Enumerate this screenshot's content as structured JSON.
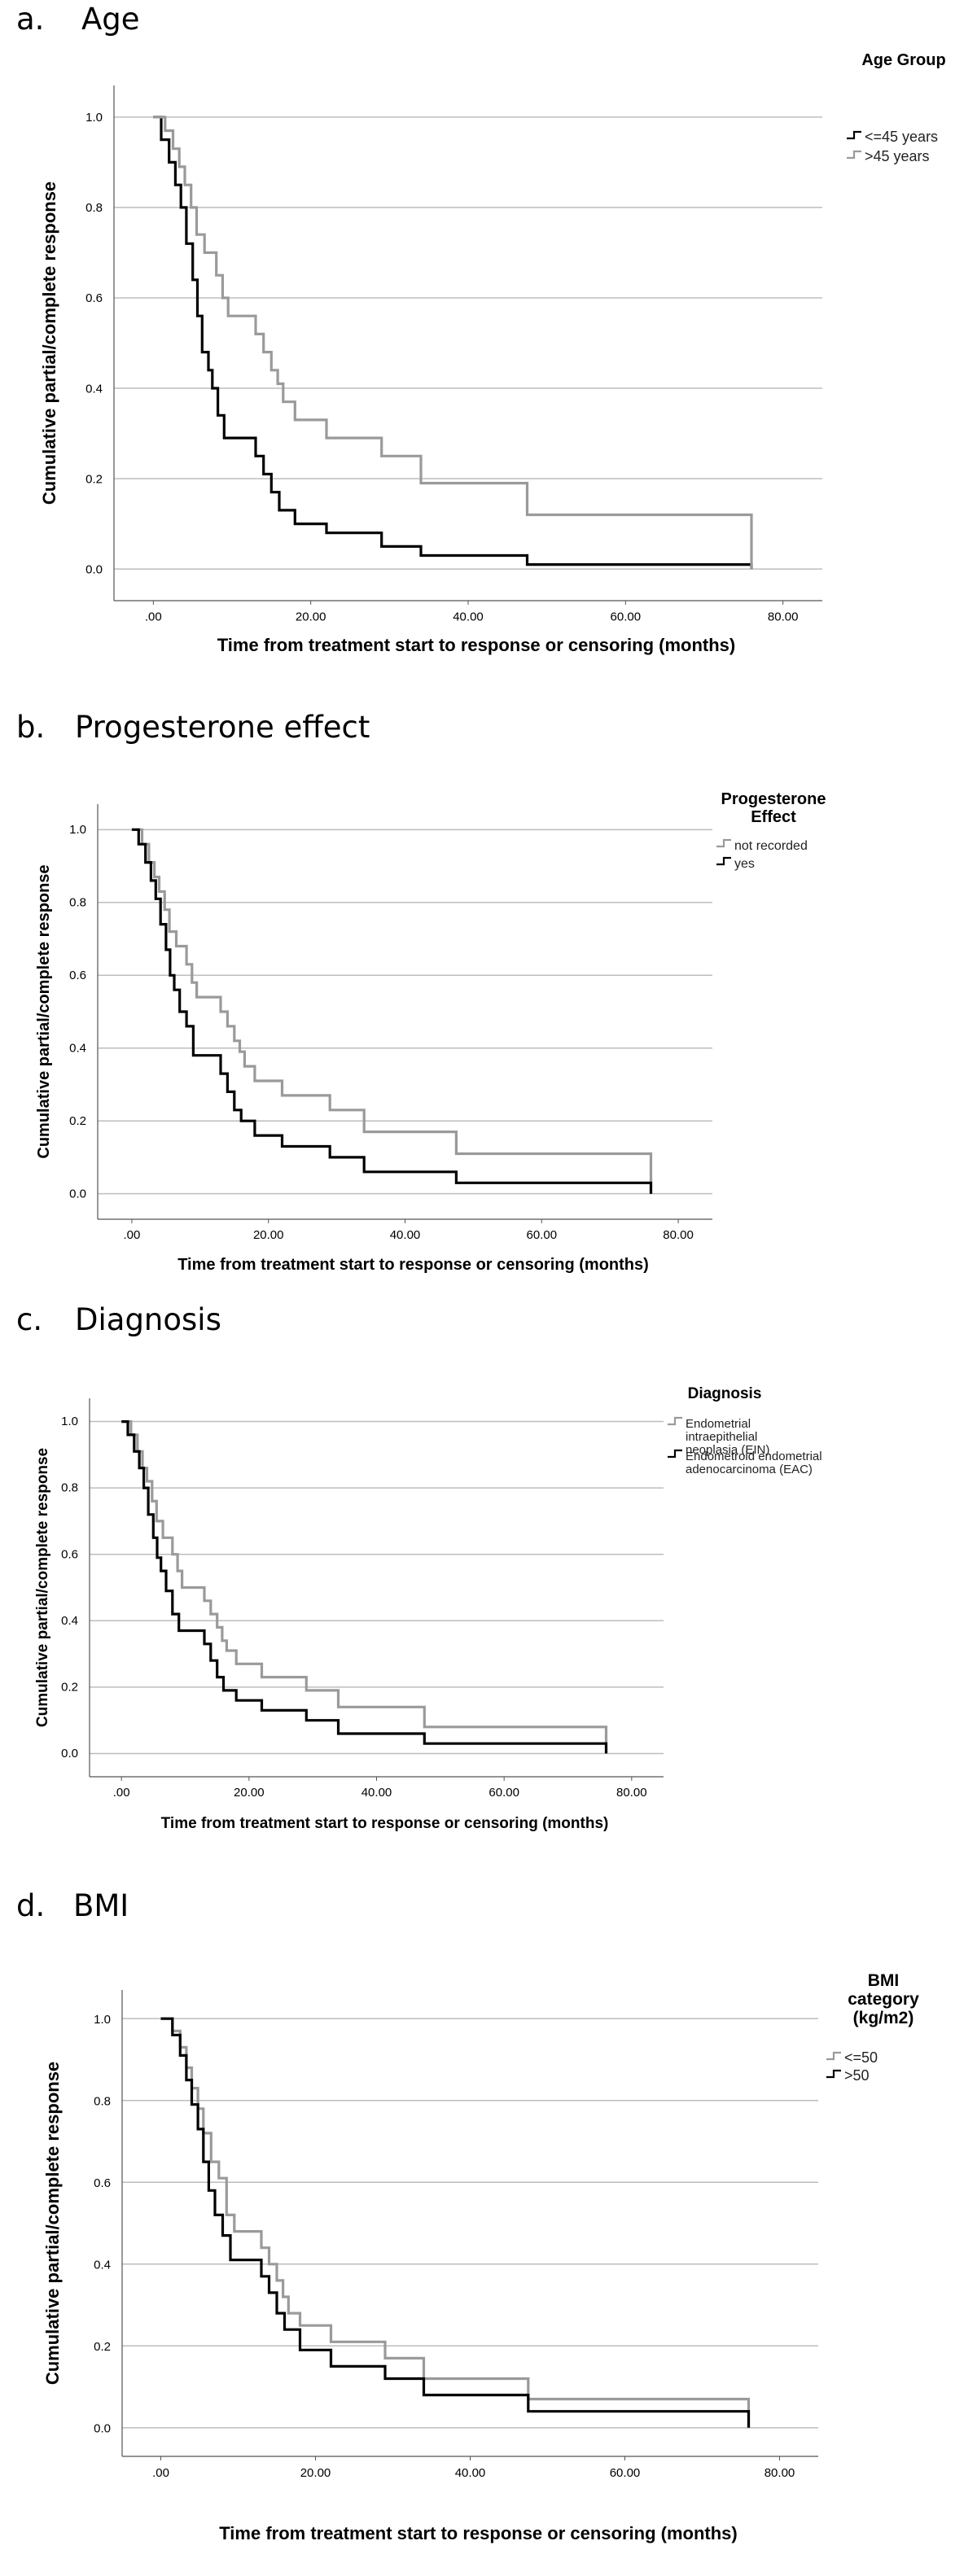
{
  "chart_data": [
    {
      "type": "line",
      "panel_label": "a.",
      "title": "Age",
      "xlabel": "Time from treatment start to response or censoring (months)",
      "ylabel": "Cumulative partial/complete response",
      "xlim": [
        -5,
        85
      ],
      "ylim": [
        -0.07,
        1.07
      ],
      "x_ticks": [
        0,
        20,
        40,
        60,
        80
      ],
      "x_tick_labels": [
        ".00",
        "20.00",
        "40.00",
        "60.00",
        "80.00"
      ],
      "y_ticks": [
        0,
        0.2,
        0.4,
        0.6,
        0.8,
        1.0
      ],
      "y_tick_labels": [
        "0.0",
        "0.2",
        "0.4",
        "0.6",
        "0.8",
        "1.0"
      ],
      "grid": "horizontal",
      "legend_title": "Age Group",
      "legend_placement": "right",
      "series": [
        {
          "name": "<=45 years",
          "color": "#000000",
          "x": [
            0,
            1,
            2,
            2.8,
            3.5,
            4.2,
            5,
            5.6,
            6.2,
            7,
            7.5,
            8.2,
            9,
            13,
            14,
            15,
            16,
            18,
            22,
            29,
            34,
            47.5,
            76
          ],
          "y": [
            1.0,
            0.95,
            0.9,
            0.85,
            0.8,
            0.72,
            0.64,
            0.56,
            0.48,
            0.44,
            0.4,
            0.34,
            0.29,
            0.25,
            0.21,
            0.17,
            0.13,
            0.1,
            0.08,
            0.05,
            0.03,
            0.01,
            0.0
          ]
        },
        {
          "name": ">45 years",
          "color": "#9a9a9a",
          "x": [
            0,
            1.5,
            2.5,
            3.3,
            4,
            4.8,
            5.5,
            6.5,
            8,
            8.8,
            9.5,
            13,
            14,
            15,
            15.8,
            16.5,
            18,
            22,
            29,
            34,
            47.5,
            76
          ],
          "y": [
            1.0,
            0.97,
            0.93,
            0.89,
            0.85,
            0.8,
            0.74,
            0.7,
            0.65,
            0.6,
            0.56,
            0.52,
            0.48,
            0.44,
            0.41,
            0.37,
            0.33,
            0.29,
            0.25,
            0.19,
            0.12,
            0.0
          ]
        }
      ]
    },
    {
      "type": "line",
      "panel_label": "b.",
      "title": "Progesterone effect",
      "xlabel": "Time from treatment start to response or censoring (months)",
      "ylabel": "Cumulative partial/complete response",
      "xlim": [
        -5,
        85
      ],
      "ylim": [
        -0.07,
        1.07
      ],
      "x_ticks": [
        0,
        20,
        40,
        60,
        80
      ],
      "x_tick_labels": [
        ".00",
        "20.00",
        "40.00",
        "60.00",
        "80.00"
      ],
      "y_ticks": [
        0,
        0.2,
        0.4,
        0.6,
        0.8,
        1.0
      ],
      "y_tick_labels": [
        "0.0",
        "0.2",
        "0.4",
        "0.6",
        "0.8",
        "1.0"
      ],
      "grid": "horizontal",
      "legend_title": "Progesterone Effect",
      "legend_placement": "right",
      "series": [
        {
          "name": "not recorded",
          "color": "#9a9a9a",
          "x": [
            0,
            1.5,
            2.5,
            3.3,
            4,
            4.8,
            5.5,
            6.5,
            8,
            8.8,
            9.5,
            13,
            14,
            15,
            15.8,
            16.5,
            18,
            22,
            29,
            34,
            47.5,
            76
          ],
          "y": [
            1.0,
            0.96,
            0.91,
            0.87,
            0.83,
            0.78,
            0.72,
            0.68,
            0.63,
            0.58,
            0.54,
            0.5,
            0.46,
            0.42,
            0.39,
            0.35,
            0.31,
            0.27,
            0.23,
            0.17,
            0.11,
            0.0
          ]
        },
        {
          "name": "yes",
          "color": "#000000",
          "x": [
            0,
            1,
            2,
            2.8,
            3.5,
            4.2,
            5,
            5.6,
            6.2,
            7,
            8,
            9,
            13,
            14,
            15,
            16,
            18,
            22,
            29,
            34,
            47.5,
            76
          ],
          "y": [
            1.0,
            0.96,
            0.91,
            0.86,
            0.81,
            0.74,
            0.67,
            0.6,
            0.56,
            0.5,
            0.46,
            0.38,
            0.33,
            0.28,
            0.23,
            0.2,
            0.16,
            0.13,
            0.1,
            0.06,
            0.03,
            0.0
          ]
        }
      ]
    },
    {
      "type": "line",
      "panel_label": "c.",
      "title": "Diagnosis",
      "xlabel": "Time from treatment start to response or censoring (months)",
      "ylabel": "Cumulative partial/complete response",
      "xlim": [
        -5,
        85
      ],
      "ylim": [
        -0.07,
        1.07
      ],
      "x_ticks": [
        0,
        20,
        40,
        60,
        80
      ],
      "x_tick_labels": [
        ".00",
        "20.00",
        "40.00",
        "60.00",
        "80.00"
      ],
      "y_ticks": [
        0,
        0.2,
        0.4,
        0.6,
        0.8,
        1.0
      ],
      "y_tick_labels": [
        "0.0",
        "0.2",
        "0.4",
        "0.6",
        "0.8",
        "1.0"
      ],
      "grid": "horizontal",
      "legend_title": "Diagnosis",
      "legend_placement": "right",
      "series": [
        {
          "name": "Endometrial intraepithelial neoplasia (EIN)",
          "color": "#9a9a9a",
          "x": [
            0,
            1.5,
            2.5,
            3.3,
            4,
            4.8,
            5.5,
            6.5,
            8,
            8.8,
            9.5,
            13,
            14,
            15,
            15.8,
            16.5,
            18,
            22,
            29,
            34,
            47.5,
            76
          ],
          "y": [
            1.0,
            0.96,
            0.91,
            0.86,
            0.82,
            0.76,
            0.7,
            0.65,
            0.6,
            0.55,
            0.5,
            0.46,
            0.42,
            0.38,
            0.34,
            0.31,
            0.27,
            0.23,
            0.19,
            0.14,
            0.08,
            0.0
          ]
        },
        {
          "name": "Endometroid endometrial adenocarcinoma (EAC)",
          "color": "#000000",
          "x": [
            0,
            1,
            2,
            2.8,
            3.5,
            4.2,
            5,
            5.6,
            6.2,
            7,
            8,
            9,
            13,
            14,
            15,
            16,
            18,
            22,
            29,
            34,
            47.5,
            76
          ],
          "y": [
            1.0,
            0.96,
            0.91,
            0.86,
            0.8,
            0.72,
            0.65,
            0.59,
            0.55,
            0.49,
            0.42,
            0.37,
            0.33,
            0.28,
            0.23,
            0.19,
            0.16,
            0.13,
            0.1,
            0.06,
            0.03,
            0.0
          ]
        }
      ]
    },
    {
      "type": "line",
      "panel_label": "d.",
      "title": "BMI",
      "xlabel": "Time from treatment start to response or censoring (months)",
      "ylabel": "Cumulative partial/complete response",
      "xlim": [
        -5,
        85
      ],
      "ylim": [
        -0.07,
        1.07
      ],
      "x_ticks": [
        0,
        20,
        40,
        60,
        80
      ],
      "x_tick_labels": [
        ".00",
        "20.00",
        "40.00",
        "60.00",
        "80.00"
      ],
      "y_ticks": [
        0,
        0.2,
        0.4,
        0.6,
        0.8,
        1.0
      ],
      "y_tick_labels": [
        "0.0",
        "0.2",
        "0.4",
        "0.6",
        "0.8",
        "1.0"
      ],
      "grid": "horizontal",
      "legend_title": "BMI category (kg/m2)",
      "legend_placement": "right",
      "series": [
        {
          "name": "<=50",
          "color": "#9a9a9a",
          "x": [
            0,
            1.5,
            2.5,
            3.3,
            4,
            4.8,
            5.5,
            6.5,
            7.5,
            8.5,
            9.5,
            13,
            14,
            15,
            15.8,
            16.5,
            18,
            22,
            29,
            34,
            47.5,
            76
          ],
          "y": [
            1.0,
            0.97,
            0.93,
            0.88,
            0.83,
            0.78,
            0.72,
            0.65,
            0.61,
            0.52,
            0.48,
            0.44,
            0.4,
            0.36,
            0.32,
            0.28,
            0.25,
            0.21,
            0.17,
            0.12,
            0.07,
            0.0
          ]
        },
        {
          "name": ">50",
          "color": "#000000",
          "x": [
            0,
            1.5,
            2.5,
            3.3,
            4,
            4.8,
            5.5,
            6.2,
            7,
            8,
            9,
            13,
            14,
            15,
            16,
            18,
            22,
            29,
            34,
            47.5,
            76
          ],
          "y": [
            1.0,
            0.96,
            0.91,
            0.85,
            0.79,
            0.73,
            0.65,
            0.58,
            0.52,
            0.47,
            0.41,
            0.37,
            0.33,
            0.28,
            0.24,
            0.19,
            0.15,
            0.12,
            0.08,
            0.04,
            0.0
          ]
        }
      ]
    }
  ]
}
